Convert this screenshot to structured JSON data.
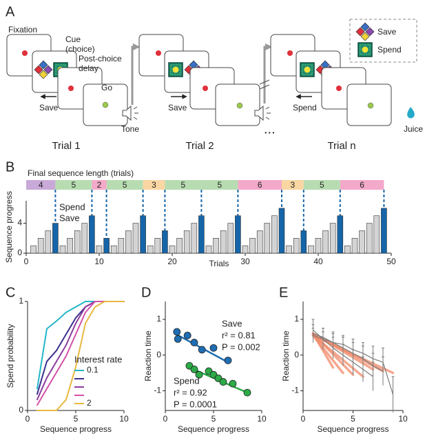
{
  "panel_labels": [
    "A",
    "B",
    "C",
    "D",
    "E"
  ],
  "task": {
    "phases": [
      "Fixation",
      "Cue",
      "(choice)",
      "Post-choice",
      "delay",
      "Go"
    ],
    "choices": [
      "Save",
      "Save",
      "Spend"
    ],
    "events": [
      "Tone",
      "Juice"
    ],
    "ellipsis": "...",
    "trials": [
      "Trial 1",
      "Trial 2",
      "Trial n"
    ],
    "legend": [
      "Save",
      "Spend"
    ]
  },
  "chart_data": [
    {
      "type": "bar",
      "band_title": "Final sequence length (trials)",
      "segments": [
        4,
        5,
        2,
        5,
        3,
        5,
        5,
        6,
        3,
        5,
        6
      ],
      "segment_colors": [
        "#c9a9d8",
        "#b7dcb1",
        "#f3a9c9",
        "#b7dcb1",
        "#f9d6a2",
        "#b7dcb1",
        "#b7dcb1",
        "#f3a9c9",
        "#f9d6a2",
        "#b7dcb1",
        "#f3a9c9"
      ],
      "x": [
        1,
        2,
        3,
        4,
        5,
        6,
        7,
        8,
        9,
        10,
        11,
        12,
        13,
        14,
        15,
        16,
        17,
        18,
        19,
        20,
        21,
        22,
        23,
        24,
        25,
        26,
        27,
        28,
        29,
        30,
        31,
        32,
        33,
        34,
        35,
        36,
        37,
        38,
        39,
        40,
        41,
        42,
        43,
        44,
        45,
        46,
        47,
        48,
        49
      ],
      "series": [
        {
          "name": "Spend",
          "color": "#1565a8",
          "values": [
            null,
            null,
            null,
            4,
            null,
            null,
            null,
            null,
            5,
            null,
            2,
            null,
            null,
            null,
            null,
            5,
            null,
            null,
            3,
            null,
            null,
            null,
            null,
            5,
            null,
            null,
            null,
            null,
            5,
            null,
            null,
            null,
            null,
            null,
            6,
            null,
            null,
            3,
            null,
            null,
            null,
            null,
            5,
            null,
            null,
            null,
            null,
            null,
            6
          ]
        },
        {
          "name": "Save",
          "color": "#d4d4d4",
          "values": [
            1,
            2,
            3,
            null,
            1,
            2,
            3,
            4,
            null,
            1,
            null,
            1,
            2,
            3,
            4,
            null,
            1,
            2,
            null,
            1,
            2,
            3,
            4,
            null,
            1,
            2,
            3,
            4,
            null,
            1,
            2,
            3,
            4,
            5,
            null,
            1,
            2,
            null,
            1,
            2,
            3,
            4,
            null,
            1,
            2,
            3,
            4,
            5,
            null
          ]
        }
      ],
      "xlabel": "Trials",
      "ylabel": "Sequence progress",
      "xlim": [
        0,
        50
      ],
      "ylim": [
        0,
        7
      ],
      "xticks": [
        0,
        10,
        20,
        30,
        40,
        50
      ],
      "yticks": [
        0,
        4
      ]
    },
    {
      "type": "line",
      "xlabel": "Sequence progress",
      "ylabel": "Spend probability",
      "xlim": [
        0,
        10
      ],
      "ylim": [
        0,
        1
      ],
      "xticks": [
        0,
        5,
        10
      ],
      "yticks": [
        0,
        1
      ],
      "legend_title": "Interest rate",
      "x": [
        1,
        2,
        3,
        4,
        5,
        6,
        7,
        8,
        10
      ],
      "series": [
        {
          "name": "0.1",
          "color": "#22b5c8",
          "values": [
            0.2,
            0.75,
            0.82,
            0.9,
            0.95,
            1,
            1,
            1,
            1
          ]
        },
        {
          "color": "#3b2f8f",
          "values": [
            0.15,
            0.45,
            0.55,
            0.7,
            0.85,
            0.95,
            1,
            1,
            1
          ]
        },
        {
          "color": "#8a3c9c",
          "values": [
            0.1,
            0.3,
            0.45,
            0.6,
            0.8,
            0.95,
            1,
            1,
            1
          ]
        },
        {
          "color": "#d44fa8",
          "values": [
            0.05,
            0.2,
            0.35,
            0.5,
            0.7,
            0.9,
            1,
            1,
            1
          ]
        },
        {
          "name": "2",
          "color": "#e8b840",
          "values": [
            0,
            0,
            0,
            0.1,
            0.4,
            0.8,
            0.95,
            1,
            1
          ]
        }
      ]
    },
    {
      "type": "scatter",
      "xlabel": "Sequence progress",
      "ylabel": "Reaction time",
      "xlim": [
        0,
        10
      ],
      "ylim": [
        -1.55,
        1.5
      ],
      "xticks": [
        0,
        5,
        10
      ],
      "yticks": [
        -1,
        0,
        1
      ],
      "series": [
        {
          "name": "Save",
          "color": "#1f6db3",
          "x": [
            1.2,
            1.3,
            2.3,
            3,
            3.8,
            5,
            6.5
          ],
          "values": [
            0.65,
            0.45,
            0.55,
            0.35,
            0.15,
            0.2,
            -0.15
          ],
          "fit_x": [
            1,
            6.5
          ],
          "fit_y": [
            0.6,
            -0.2
          ],
          "annotations": [
            "r² = 0.81",
            "P = 0.002"
          ]
        },
        {
          "name": "Spend",
          "color": "#2cab47",
          "x": [
            2.5,
            3,
            3.5,
            4.5,
            5,
            5.5,
            6,
            7,
            8.5
          ],
          "values": [
            -0.3,
            -0.4,
            -0.55,
            -0.45,
            -0.55,
            -0.65,
            -0.75,
            -0.8,
            -1.05
          ],
          "fit_x": [
            2.5,
            8.5
          ],
          "fit_y": [
            -0.35,
            -1.05
          ],
          "annotations": [
            "r² = 0.92",
            "P = 0.0001"
          ]
        }
      ]
    },
    {
      "type": "line",
      "xlabel": "Sequence progress",
      "ylabel": "Reaction time",
      "xlim": [
        0,
        10
      ],
      "ylim": [
        -1.55,
        1.5
      ],
      "xticks": [
        0,
        5,
        10
      ],
      "yticks": [
        -1,
        0,
        1
      ],
      "series": [
        {
          "color": "#f08a6a",
          "x": [
            1,
            3
          ],
          "values": [
            0.6,
            -0.35
          ]
        },
        {
          "color": "#f08a6a",
          "x": [
            1,
            4
          ],
          "values": [
            0.55,
            -0.5
          ]
        },
        {
          "color": "#f08a6a",
          "x": [
            1,
            5
          ],
          "values": [
            0.6,
            -0.55
          ]
        },
        {
          "color": "#f08a6a",
          "x": [
            1,
            6
          ],
          "values": [
            0.55,
            -0.6
          ]
        },
        {
          "color": "#f08a6a",
          "x": [
            1,
            7
          ],
          "values": [
            0.6,
            -0.4
          ]
        },
        {
          "color": "#f08a6a",
          "x": [
            1,
            8
          ],
          "values": [
            0.6,
            -0.45
          ]
        },
        {
          "color": "#f08a6a",
          "x": [
            1,
            9
          ],
          "values": [
            0.55,
            -0.5
          ]
        },
        {
          "color": "#7a7a7a",
          "x": [
            1,
            2,
            3,
            4,
            5,
            6,
            7
          ],
          "values": [
            0.7,
            0.45,
            0.2,
            0,
            -0.2,
            -0.4,
            -0.6
          ],
          "errors": [
            0.3,
            0.3,
            0.3,
            0.3,
            0.35,
            0.35,
            0.4
          ]
        },
        {
          "color": "#7a7a7a",
          "x": [
            1,
            2,
            3,
            4,
            5,
            6,
            7,
            8
          ],
          "values": [
            0.6,
            0.5,
            0.35,
            0.2,
            0.05,
            -0.1,
            -0.3,
            -0.45
          ],
          "errors": [
            0.25,
            0.25,
            0.3,
            0.3,
            0.3,
            0.35,
            0.35,
            0.4
          ]
        },
        {
          "color": "#7a7a7a",
          "x": [
            1,
            2,
            3,
            4,
            5,
            6,
            7,
            8,
            9
          ],
          "values": [
            0.55,
            0.45,
            0.35,
            0.3,
            0.15,
            0.05,
            -0.1,
            -0.2,
            -1.1
          ],
          "errors": [
            0.2,
            0.2,
            0.25,
            0.25,
            0.3,
            0.3,
            0.35,
            0.4,
            0.5
          ]
        }
      ]
    }
  ]
}
